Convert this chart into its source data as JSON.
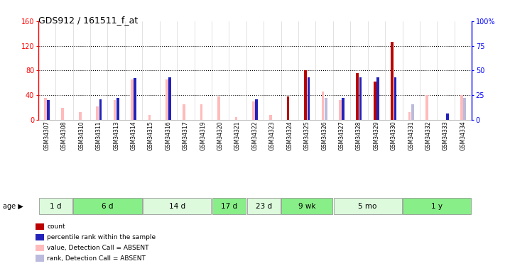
{
  "title": "GDS912 / 161511_f_at",
  "samples": [
    "GSM34307",
    "GSM34308",
    "GSM34310",
    "GSM34311",
    "GSM34313",
    "GSM34314",
    "GSM34315",
    "GSM34316",
    "GSM34317",
    "GSM34319",
    "GSM34320",
    "GSM34321",
    "GSM34322",
    "GSM34323",
    "GSM34324",
    "GSM34325",
    "GSM34326",
    "GSM34327",
    "GSM34328",
    "GSM34329",
    "GSM34330",
    "GSM34331",
    "GSM34332",
    "GSM34333",
    "GSM34334"
  ],
  "count_values": [
    0,
    0,
    0,
    0,
    0,
    0,
    0,
    0,
    0,
    0,
    0,
    0,
    0,
    0,
    38,
    80,
    0,
    0,
    76,
    62,
    126,
    0,
    0,
    0,
    0
  ],
  "percentile_values": [
    20,
    0,
    0,
    21,
    22,
    42,
    0,
    43,
    0,
    0,
    0,
    0,
    21,
    0,
    0,
    43,
    0,
    22,
    43,
    43,
    43,
    0,
    0,
    6,
    0
  ],
  "absent_value_values": [
    35,
    19,
    12,
    22,
    32,
    65,
    8,
    65,
    25,
    25,
    38,
    4,
    30,
    8,
    0,
    0,
    46,
    32,
    0,
    0,
    0,
    12,
    40,
    0,
    40
  ],
  "absent_rank_values": [
    0,
    0,
    0,
    0,
    0,
    0,
    0,
    0,
    0,
    0,
    0,
    0,
    0,
    0,
    0,
    0,
    22,
    22,
    0,
    0,
    0,
    16,
    0,
    6,
    22
  ],
  "age_groups": [
    {
      "label": "1 d",
      "start": 0,
      "end": 2,
      "color": "#ddfadd"
    },
    {
      "label": "6 d",
      "start": 2,
      "end": 6,
      "color": "#88ee88"
    },
    {
      "label": "14 d",
      "start": 6,
      "end": 10,
      "color": "#ddfadd"
    },
    {
      "label": "17 d",
      "start": 10,
      "end": 12,
      "color": "#88ee88"
    },
    {
      "label": "23 d",
      "start": 12,
      "end": 14,
      "color": "#ddfadd"
    },
    {
      "label": "9 wk",
      "start": 14,
      "end": 17,
      "color": "#88ee88"
    },
    {
      "label": "5 mo",
      "start": 17,
      "end": 21,
      "color": "#ddfadd"
    },
    {
      "label": "1 y",
      "start": 21,
      "end": 25,
      "color": "#88ee88"
    }
  ],
  "ylim_left": [
    0,
    160
  ],
  "ylim_right": [
    0,
    100
  ],
  "yticks_left": [
    0,
    40,
    80,
    120,
    160
  ],
  "yticks_right": [
    0,
    25,
    50,
    75,
    100
  ],
  "count_color": "#bb0000",
  "percentile_color": "#2222bb",
  "absent_value_color": "#ffbbbb",
  "absent_rank_color": "#bbbbdd",
  "bg_color": "#ffffff",
  "legend_items": [
    {
      "label": "count",
      "color": "#bb0000"
    },
    {
      "label": "percentile rank within the sample",
      "color": "#2222bb"
    },
    {
      "label": "value, Detection Call = ABSENT",
      "color": "#ffbbbb"
    },
    {
      "label": "rank, Detection Call = ABSENT",
      "color": "#bbbbdd"
    }
  ]
}
